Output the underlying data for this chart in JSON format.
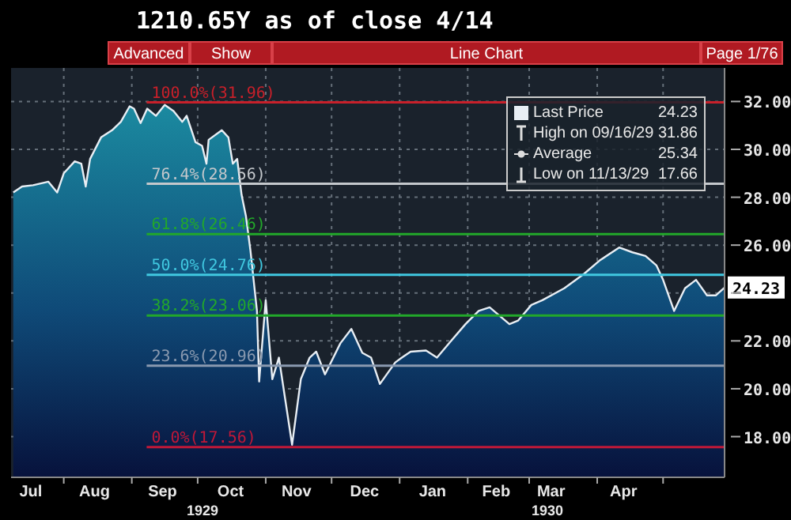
{
  "chart_data": {
    "type": "area",
    "title": "1210.65Y as of close 4/14",
    "x": [
      "1929-07-09",
      "1929-07-13",
      "1929-07-18",
      "1929-07-25",
      "1929-07-29",
      "1929-08-01",
      "1929-08-06",
      "1929-08-09",
      "1929-08-11",
      "1929-08-13",
      "1929-08-18",
      "1929-08-23",
      "1929-08-27",
      "1929-08-31",
      "1929-09-02",
      "1929-09-05",
      "1929-09-08",
      "1929-09-12",
      "1929-09-16",
      "1929-09-20",
      "1929-09-24",
      "1929-09-26",
      "1929-09-30",
      "1929-10-03",
      "1929-10-05",
      "1929-10-06",
      "1929-10-12",
      "1929-10-15",
      "1929-10-17",
      "1929-10-19",
      "1929-10-21",
      "1929-10-23",
      "1929-10-25",
      "1929-10-28",
      "1929-10-29",
      "1929-11-01",
      "1929-11-04",
      "1929-11-07",
      "1929-11-13",
      "1929-11-17",
      "1929-11-21",
      "1929-11-24",
      "1929-11-28",
      "1929-12-05",
      "1929-12-10",
      "1929-12-15",
      "1929-12-19",
      "1929-12-23",
      "1929-12-30",
      "1930-01-02",
      "1930-01-06",
      "1930-01-13",
      "1930-01-18",
      "1930-01-24",
      "1930-01-31",
      "1930-02-06",
      "1930-02-11",
      "1930-02-20",
      "1930-02-24",
      "1930-03-02",
      "1930-03-07",
      "1930-03-17",
      "1930-03-26",
      "1930-04-02",
      "1930-04-11",
      "1930-04-17",
      "1930-04-23",
      "1930-04-28",
      "1930-05-01",
      "1930-05-06",
      "1930-05-11",
      "1930-05-16",
      "1930-05-21",
      "1930-05-25",
      "1930-05-29"
    ],
    "series": [
      {
        "name": "Last Price",
        "color": "#e8eef4",
        "values": [
          28.2,
          28.45,
          28.5,
          28.65,
          28.2,
          29.0,
          29.5,
          29.4,
          28.45,
          29.6,
          30.5,
          30.8,
          31.15,
          31.8,
          31.7,
          31.1,
          31.7,
          31.4,
          31.86,
          31.6,
          31.15,
          31.4,
          30.3,
          30.15,
          29.4,
          30.4,
          30.8,
          30.5,
          29.4,
          29.6,
          28.1,
          27.2,
          25.8,
          23.25,
          20.3,
          23.7,
          20.4,
          21.3,
          17.66,
          20.4,
          21.3,
          21.55,
          20.6,
          21.9,
          22.5,
          21.5,
          21.3,
          20.2,
          21.1,
          21.3,
          21.55,
          21.6,
          21.3,
          21.95,
          22.7,
          23.25,
          23.4,
          22.7,
          22.85,
          23.5,
          23.7,
          24.2,
          24.8,
          25.35,
          25.9,
          25.7,
          25.55,
          25.15,
          24.55,
          23.25,
          24.2,
          24.55,
          23.9,
          23.9,
          24.23
        ]
      }
    ],
    "xlim": [
      "1929-07-08",
      "1930-05-29"
    ],
    "xticks": [
      {
        "value": "1929-07-17",
        "label": "Jul"
      },
      {
        "value": "1929-08-01",
        "label": null
      },
      {
        "value": "1929-08-15",
        "label": "Aug"
      },
      {
        "value": "1929-09-01",
        "label": null
      },
      {
        "value": "1929-09-15",
        "label": "Sep"
      },
      {
        "value": "1929-10-01",
        "label": null
      },
      {
        "value": "1929-10-16",
        "label": "Oct"
      },
      {
        "value": "1929-11-01",
        "label": null
      },
      {
        "value": "1929-11-15",
        "label": "Nov"
      },
      {
        "value": "1929-12-01",
        "label": null
      },
      {
        "value": "1929-12-16",
        "label": "Dec"
      },
      {
        "value": "1930-01-01",
        "label": null
      },
      {
        "value": "1930-01-16",
        "label": "Jan"
      },
      {
        "value": "1930-02-01",
        "label": null
      },
      {
        "value": "1930-02-14",
        "label": "Feb"
      },
      {
        "value": "1930-03-01",
        "label": null
      },
      {
        "value": "1930-03-11",
        "label": "Mar"
      },
      {
        "value": "1930-04-01",
        "label": null
      },
      {
        "value": "1930-04-13",
        "label": "Apr"
      },
      {
        "value": "1930-05-01",
        "label": null
      }
    ],
    "ylim": [
      16.3,
      33.4
    ],
    "yticks": [
      {
        "value": 18,
        "label": "18.00"
      },
      {
        "value": 20,
        "label": "20.00"
      },
      {
        "value": 22,
        "label": "22.00"
      },
      {
        "value": 24,
        "label": null
      },
      {
        "value": 26,
        "label": "26.00"
      },
      {
        "value": 28,
        "label": "28.00"
      },
      {
        "value": 30,
        "label": "30.00"
      },
      {
        "value": 32,
        "label": "32.00"
      }
    ],
    "ref_lines": [
      {
        "axis": "y",
        "value": 31.96,
        "label": "100.0%(31.96)",
        "color": "#c8202a"
      },
      {
        "axis": "y",
        "value": 28.56,
        "label": "76.4%(28.56)",
        "color": "#c4c8cc"
      },
      {
        "axis": "y",
        "value": 26.46,
        "label": "61.8%(26.46)",
        "color": "#22a82a"
      },
      {
        "axis": "y",
        "value": 24.76,
        "label": "50.0%(24.76)",
        "color": "#40c8e0"
      },
      {
        "axis": "y",
        "value": 23.06,
        "label": "38.2%(23.06)",
        "color": "#22a82a"
      },
      {
        "axis": "y",
        "value": 20.96,
        "label": "23.6%(20.96)",
        "color": "#8a9ab0"
      },
      {
        "axis": "y",
        "value": 17.56,
        "label": "0.0%(17.56)",
        "color": "#c01838"
      }
    ],
    "annotations": [
      "Advanced",
      "Show",
      "Line Chart",
      "Page 1/76",
      "24.23",
      "High on 09/16/29",
      "31.86",
      "Average",
      "25.34",
      "Low on 11/13/29",
      "17.66",
      "1929",
      "1930",
      {
        "text": "24.23",
        "x": "1930-05-29",
        "y": 24.23
      }
    ],
    "grid": true,
    "legend": "top right",
    "marker": "none",
    "line_style": "solid"
  }
}
